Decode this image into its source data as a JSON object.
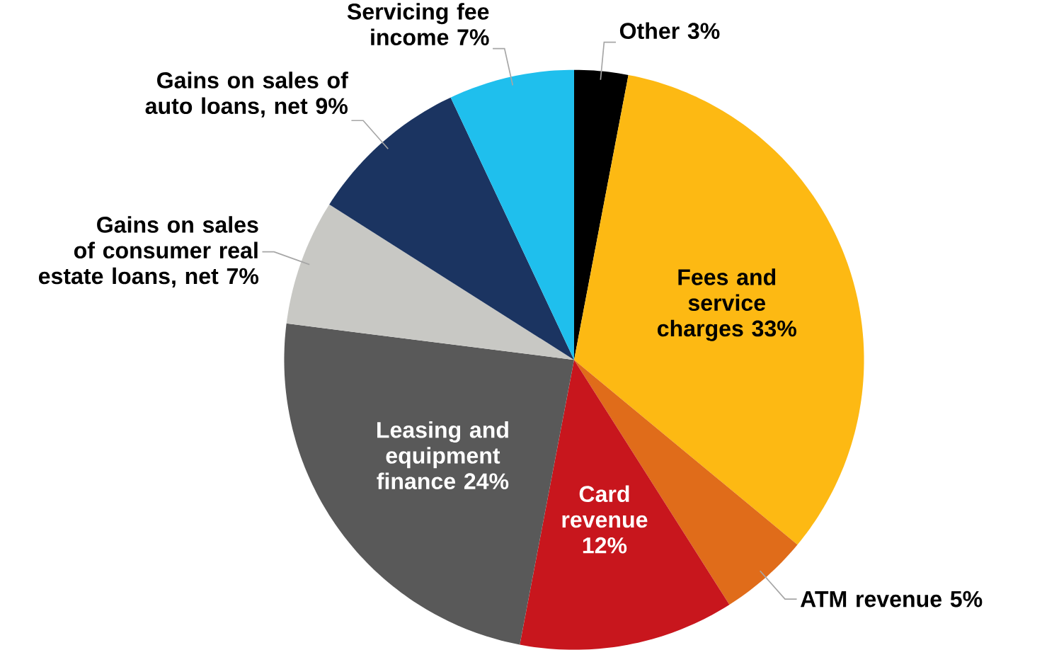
{
  "chart_data": {
    "type": "pie",
    "categories": [
      "Other",
      "Fees and service charges",
      "ATM revenue",
      "Card revenue",
      "Leasing and equipment finance",
      "Gains on sales of consumer real estate loans, net",
      "Gains on sales of auto loans, net",
      "Servicing fee income"
    ],
    "values": [
      3,
      33,
      5,
      12,
      24,
      7,
      9,
      7
    ],
    "value_labels": [
      "3%",
      "33%",
      "5%",
      "12%",
      "24%",
      "7%",
      "9%",
      "7%"
    ],
    "colors": [
      "#000000",
      "#fdb913",
      "#e06c1a",
      "#c8161d",
      "#595959",
      "#c8c8c4",
      "#1b3461",
      "#1fbfed"
    ]
  }
}
